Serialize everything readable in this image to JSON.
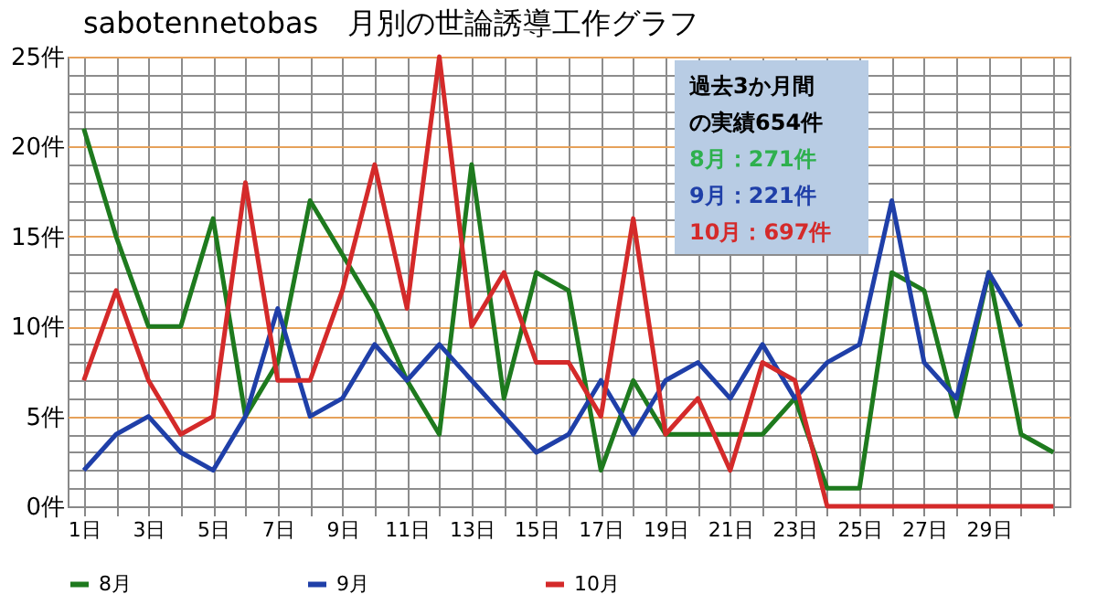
{
  "chart_data": {
    "type": "line",
    "title": "sabotennetobas　月別の世論誘導工作グラフ",
    "categories": [
      "1日",
      null,
      "3日",
      null,
      "5日",
      null,
      "7日",
      null,
      "9日",
      null,
      "11日",
      null,
      "13日",
      null,
      "15日",
      null,
      "17日",
      null,
      "19日",
      null,
      "21日",
      null,
      "23日",
      null,
      "25日",
      null,
      "27日",
      null,
      "29日",
      null,
      null
    ],
    "series": [
      {
        "name": "8月",
        "color": "#1e7a1e",
        "values": [
          21,
          15,
          10,
          10,
          16,
          5,
          8,
          17,
          14,
          11,
          7,
          4,
          19,
          6,
          13,
          12,
          2,
          7,
          4,
          4,
          4,
          4,
          6,
          1,
          1,
          13,
          12,
          5,
          13,
          4,
          3
        ]
      },
      {
        "name": "9月",
        "color": "#1f3fa8",
        "values": [
          2,
          4,
          5,
          3,
          2,
          5,
          11,
          5,
          6,
          9,
          7,
          9,
          7,
          5,
          3,
          4,
          7,
          4,
          7,
          8,
          6,
          9,
          6,
          8,
          9,
          17,
          8,
          6,
          13,
          10,
          null
        ]
      },
      {
        "name": "10月",
        "color": "#d42a2a",
        "values": [
          7,
          12,
          7,
          4,
          5,
          18,
          7,
          7,
          12,
          19,
          11,
          25,
          10,
          13,
          8,
          8,
          5,
          16,
          4,
          6,
          2,
          8,
          7,
          0,
          0,
          0,
          0,
          0,
          0,
          0,
          0
        ]
      }
    ],
    "ylim": [
      0,
      25
    ],
    "yticks": [
      {
        "value": 0,
        "label": "0件"
      },
      {
        "value": 1,
        "label": null
      },
      {
        "value": 2,
        "label": null
      },
      {
        "value": 3,
        "label": null
      },
      {
        "value": 4,
        "label": null
      },
      {
        "value": 5,
        "label": "5件"
      },
      {
        "value": 6,
        "label": null
      },
      {
        "value": 7,
        "label": null
      },
      {
        "value": 8,
        "label": null
      },
      {
        "value": 9,
        "label": null
      },
      {
        "value": 10,
        "label": "10件"
      },
      {
        "value": 11,
        "label": null
      },
      {
        "value": 12,
        "label": null
      },
      {
        "value": 13,
        "label": null
      },
      {
        "value": 14,
        "label": null
      },
      {
        "value": 15,
        "label": "15件"
      },
      {
        "value": 16,
        "label": null
      },
      {
        "value": 17,
        "label": null
      },
      {
        "value": 18,
        "label": null
      },
      {
        "value": 19,
        "label": null
      },
      {
        "value": 20,
        "label": "20件"
      },
      {
        "value": 21,
        "label": null
      },
      {
        "value": 22,
        "label": null
      },
      {
        "value": 23,
        "label": null
      },
      {
        "value": 24,
        "label": null
      },
      {
        "value": 25,
        "label": "25件"
      }
    ],
    "annotations": [
      "過去3か月間",
      "の実績654件",
      "8月：271件",
      "9月：221件",
      "10月：697件"
    ],
    "grid": true,
    "legend": "bottom",
    "marker": "none",
    "line_style": "solid"
  }
}
